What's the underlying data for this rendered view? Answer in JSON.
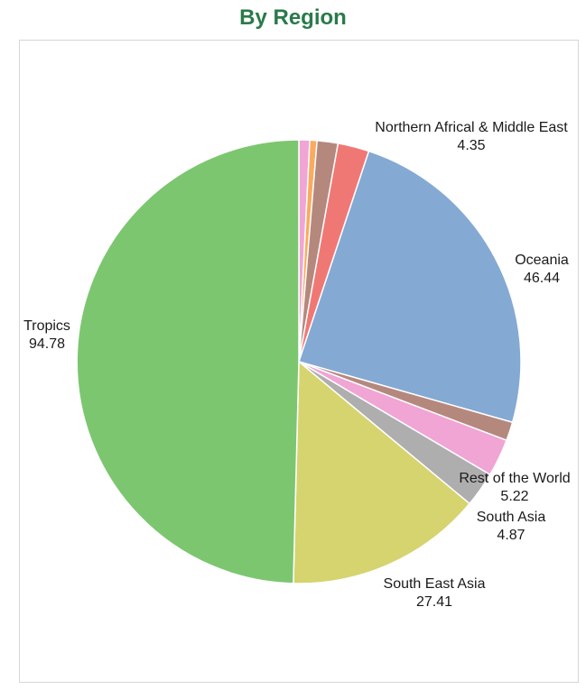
{
  "chart_data": {
    "type": "pie",
    "title": "By Region",
    "start_angle_deg": 0,
    "direction": "clockwise",
    "slices": [
      {
        "label": "",
        "value": 1.5,
        "color": "#f0a5d5",
        "show_label": false
      },
      {
        "label": "",
        "value": 1.0,
        "color": "#fbab5e",
        "show_label": false
      },
      {
        "label": "",
        "value": 2.9,
        "color": "#b5887e",
        "show_label": false
      },
      {
        "label": "Northern Africal & Middle East",
        "value": 4.35,
        "display_value": "4.35",
        "color": "#f07874",
        "show_label": true
      },
      {
        "label": "Oceania",
        "value": 46.44,
        "display_value": "46.44",
        "color": "#84a9d3",
        "show_label": true
      },
      {
        "label": "",
        "value": 2.6,
        "color": "#b5887e",
        "show_label": false
      },
      {
        "label": "Rest of the World",
        "value": 5.22,
        "display_value": "5.22",
        "color": "#f0a5d5",
        "show_label": true
      },
      {
        "label": "South Asia",
        "value": 4.87,
        "display_value": "4.87",
        "color": "#aeaeae",
        "show_label": true
      },
      {
        "label": "South East Asia",
        "value": 27.41,
        "display_value": "27.41",
        "color": "#d5d46f",
        "show_label": true
      },
      {
        "label": "Tropics",
        "value": 94.78,
        "display_value": "94.78",
        "color": "#7cc670",
        "show_label": true
      }
    ]
  }
}
